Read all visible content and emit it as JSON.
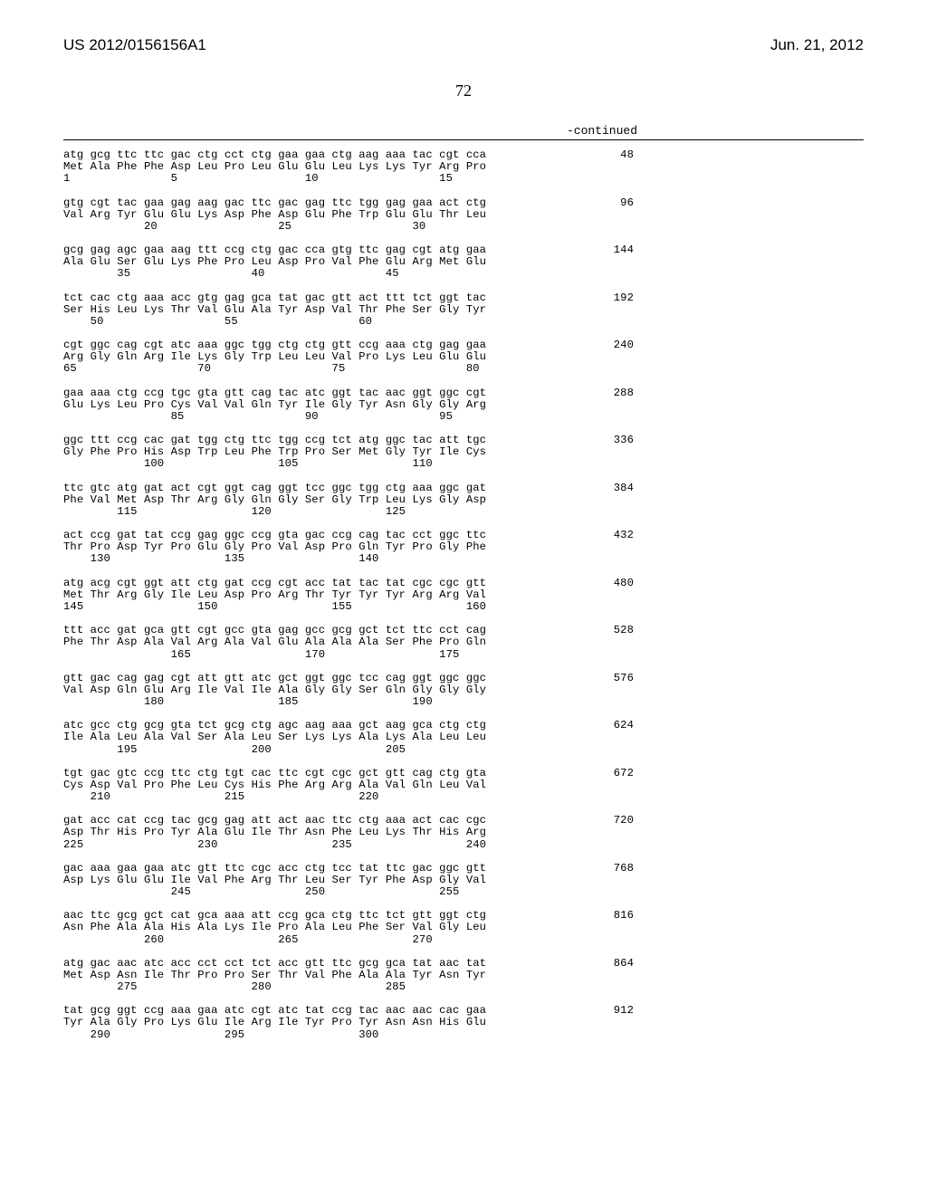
{
  "header": {
    "left": "US 2012/0156156A1",
    "right": "Jun. 21, 2012"
  },
  "pagenum": "72",
  "continued": "-continued",
  "blocks": [
    {
      "lines": [
        "atg gcg ttc ttc gac ctg cct ctg gaa gaa ctg aag aaa tac cgt cca",
        "Met Ala Phe Phe Asp Leu Pro Leu Glu Glu Leu Lys Lys Tyr Arg Pro",
        "1               5                   10                  15"
      ],
      "num": "48"
    },
    {
      "lines": [
        "gtg cgt tac gaa gag aag gac ttc gac gag ttc tgg gag gaa act ctg",
        "Val Arg Tyr Glu Glu Lys Asp Phe Asp Glu Phe Trp Glu Glu Thr Leu",
        "            20                  25                  30"
      ],
      "num": "96"
    },
    {
      "lines": [
        "gcg gag agc gaa aag ttt ccg ctg gac cca gtg ttc gag cgt atg gaa",
        "Ala Glu Ser Glu Lys Phe Pro Leu Asp Pro Val Phe Glu Arg Met Glu",
        "        35                  40                  45"
      ],
      "num": "144"
    },
    {
      "lines": [
        "tct cac ctg aaa acc gtg gag gca tat gac gtt act ttt tct ggt tac",
        "Ser His Leu Lys Thr Val Glu Ala Tyr Asp Val Thr Phe Ser Gly Tyr",
        "    50                  55                  60"
      ],
      "num": "192"
    },
    {
      "lines": [
        "cgt ggc cag cgt atc aaa ggc tgg ctg ctg gtt ccg aaa ctg gag gaa",
        "Arg Gly Gln Arg Ile Lys Gly Trp Leu Leu Val Pro Lys Leu Glu Glu",
        "65                  70                  75                  80"
      ],
      "num": "240"
    },
    {
      "lines": [
        "gaa aaa ctg ccg tgc gta gtt cag tac atc ggt tac aac ggt ggc cgt",
        "Glu Lys Leu Pro Cys Val Val Gln Tyr Ile Gly Tyr Asn Gly Gly Arg",
        "                85                  90                  95"
      ],
      "num": "288"
    },
    {
      "lines": [
        "ggc ttt ccg cac gat tgg ctg ttc tgg ccg tct atg ggc tac att tgc",
        "Gly Phe Pro His Asp Trp Leu Phe Trp Pro Ser Met Gly Tyr Ile Cys",
        "            100                 105                 110"
      ],
      "num": "336"
    },
    {
      "lines": [
        "ttc gtc atg gat act cgt ggt cag ggt tcc ggc tgg ctg aaa ggc gat",
        "Phe Val Met Asp Thr Arg Gly Gln Gly Ser Gly Trp Leu Lys Gly Asp",
        "        115                 120                 125"
      ],
      "num": "384"
    },
    {
      "lines": [
        "act ccg gat tat ccg gag ggc ccg gta gac ccg cag tac cct ggc ttc",
        "Thr Pro Asp Tyr Pro Glu Gly Pro Val Asp Pro Gln Tyr Pro Gly Phe",
        "    130                 135                 140"
      ],
      "num": "432"
    },
    {
      "lines": [
        "atg acg cgt ggt att ctg gat ccg cgt acc tat tac tat cgc cgc gtt",
        "Met Thr Arg Gly Ile Leu Asp Pro Arg Thr Tyr Tyr Tyr Arg Arg Val",
        "145                 150                 155                 160"
      ],
      "num": "480"
    },
    {
      "lines": [
        "ttt acc gat gca gtt cgt gcc gta gag gcc gcg gct tct ttc cct cag",
        "Phe Thr Asp Ala Val Arg Ala Val Glu Ala Ala Ala Ser Phe Pro Gln",
        "                165                 170                 175"
      ],
      "num": "528"
    },
    {
      "lines": [
        "gtt gac cag gag cgt att gtt atc gct ggt ggc tcc cag ggt ggc ggc",
        "Val Asp Gln Glu Arg Ile Val Ile Ala Gly Gly Ser Gln Gly Gly Gly",
        "            180                 185                 190"
      ],
      "num": "576"
    },
    {
      "lines": [
        "atc gcc ctg gcg gta tct gcg ctg agc aag aaa gct aag gca ctg ctg",
        "Ile Ala Leu Ala Val Ser Ala Leu Ser Lys Lys Ala Lys Ala Leu Leu",
        "        195                 200                 205"
      ],
      "num": "624"
    },
    {
      "lines": [
        "tgt gac gtc ccg ttc ctg tgt cac ttc cgt cgc gct gtt cag ctg gta",
        "Cys Asp Val Pro Phe Leu Cys His Phe Arg Arg Ala Val Gln Leu Val",
        "    210                 215                 220"
      ],
      "num": "672"
    },
    {
      "lines": [
        "gat acc cat ccg tac gcg gag att act aac ttc ctg aaa act cac cgc",
        "Asp Thr His Pro Tyr Ala Glu Ile Thr Asn Phe Leu Lys Thr His Arg",
        "225                 230                 235                 240"
      ],
      "num": "720"
    },
    {
      "lines": [
        "gac aaa gaa gaa atc gtt ttc cgc acc ctg tcc tat ttc gac ggc gtt",
        "Asp Lys Glu Glu Ile Val Phe Arg Thr Leu Ser Tyr Phe Asp Gly Val",
        "                245                 250                 255"
      ],
      "num": "768"
    },
    {
      "lines": [
        "aac ttc gcg gct cat gca aaa att ccg gca ctg ttc tct gtt ggt ctg",
        "Asn Phe Ala Ala His Ala Lys Ile Pro Ala Leu Phe Ser Val Gly Leu",
        "            260                 265                 270"
      ],
      "num": "816"
    },
    {
      "lines": [
        "atg gac aac atc acc cct cct tct acc gtt ttc gcg gca tat aac tat",
        "Met Asp Asn Ile Thr Pro Pro Ser Thr Val Phe Ala Ala Tyr Asn Tyr",
        "        275                 280                 285"
      ],
      "num": "864"
    },
    {
      "lines": [
        "tat gcg ggt ccg aaa gaa atc cgt atc tat ccg tac aac aac cac gaa",
        "Tyr Ala Gly Pro Lys Glu Ile Arg Ile Tyr Pro Tyr Asn Asn His Glu",
        "    290                 295                 300"
      ],
      "num": "912"
    }
  ]
}
